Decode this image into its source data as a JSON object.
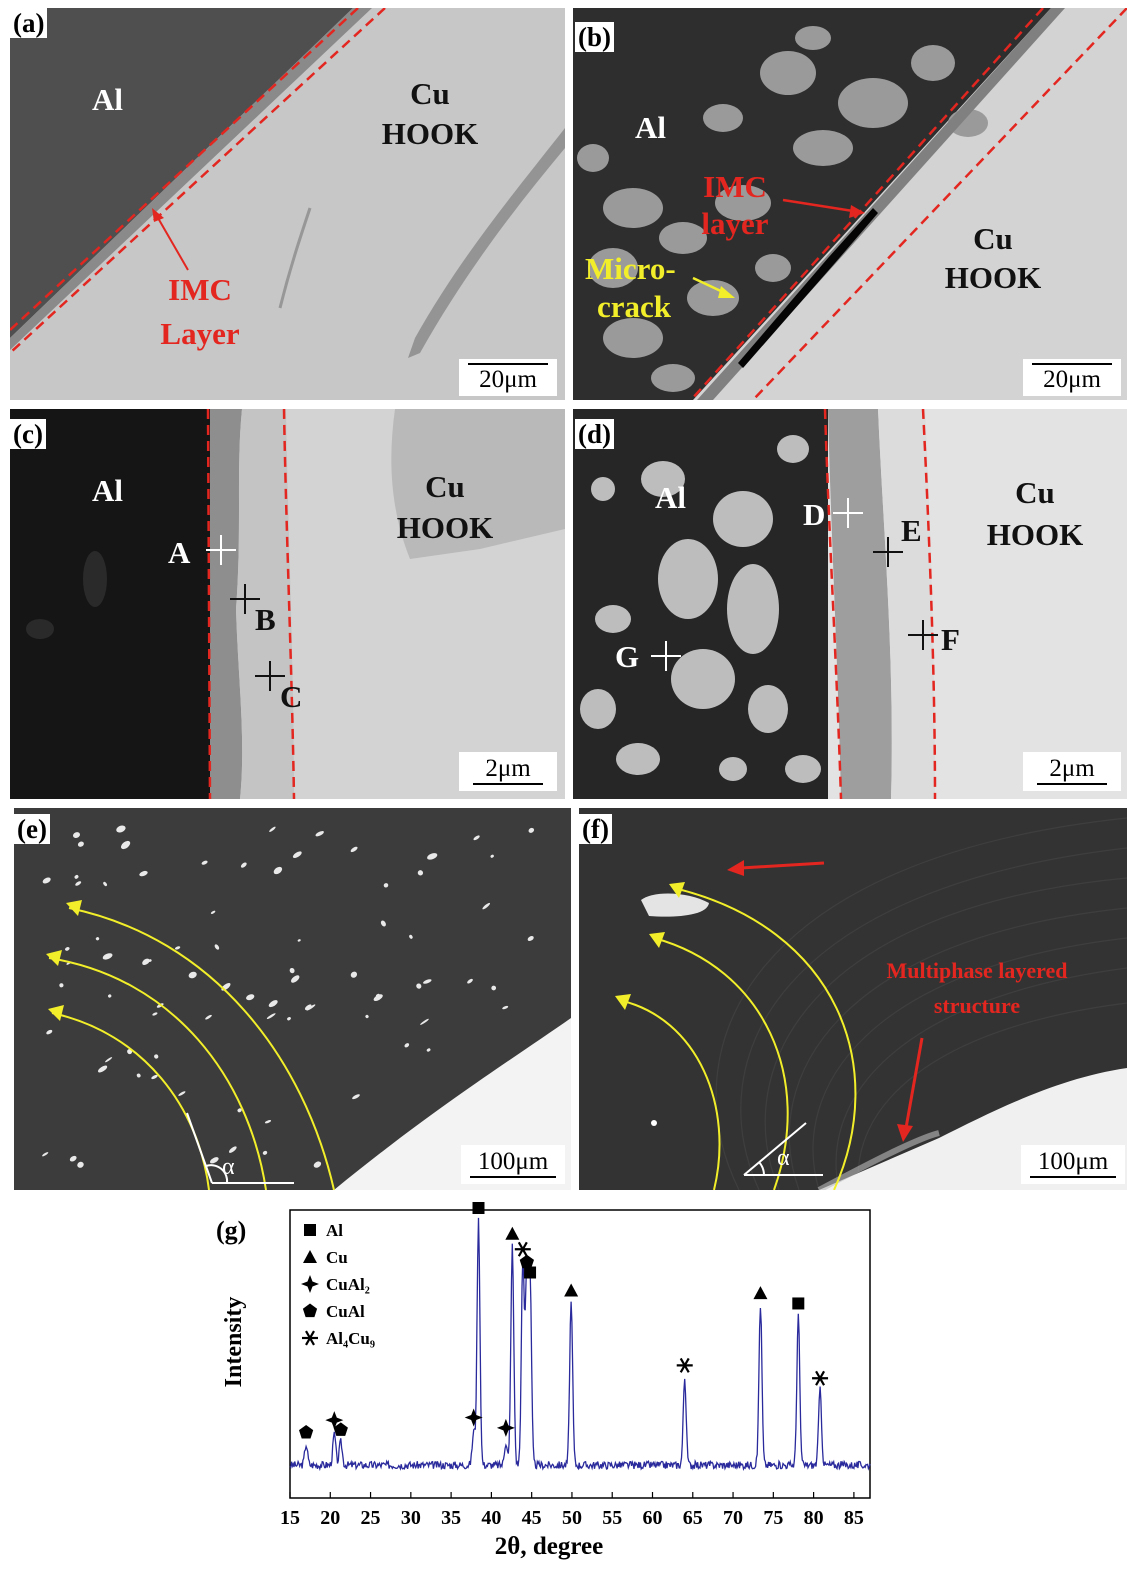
{
  "figure": {
    "panel_a": {
      "label": "(a)",
      "al": "Al",
      "cu": "Cu",
      "hook": "HOOK",
      "imc_1": "IMC",
      "imc_2": "Layer",
      "scale": "20μm"
    },
    "panel_b": {
      "label": "(b)",
      "al": "Al",
      "imc_1": "IMC",
      "imc_2": "layer",
      "micro_1": "Micro-",
      "micro_2": "crack",
      "cu": "Cu",
      "hook": "HOOK",
      "scale": "20μm"
    },
    "panel_c": {
      "label": "(c)",
      "al": "Al",
      "cu": "Cu",
      "hook": "HOOK",
      "point_a": "A",
      "point_b": "B",
      "point_c": "C",
      "scale": "2μm"
    },
    "panel_d": {
      "label": "(d)",
      "al": "Al",
      "cu": "Cu",
      "hook": "HOOK",
      "point_d": "D",
      "point_e": "E",
      "point_f": "F",
      "point_g": "G",
      "scale": "2μm"
    },
    "panel_e": {
      "label": "(e)",
      "alpha": "α",
      "scale": "100μm"
    },
    "panel_f": {
      "label": "(f)",
      "multiphase_1": "Multiphase layered",
      "multiphase_2": "structure",
      "alpha": "α",
      "scale": "100μm"
    },
    "panel_g": {
      "label": "(g)"
    }
  },
  "colors": {
    "imc_line": "#e3261f",
    "flow_line": "#f2ef2a",
    "xrd_line": "#2a2a9c"
  },
  "chart_data": {
    "type": "line",
    "xlabel": "2θ, degree",
    "ylabel": "Intensity",
    "xlim": [
      15,
      87
    ],
    "x_ticks": [
      15,
      20,
      25,
      30,
      35,
      40,
      45,
      50,
      55,
      60,
      65,
      70,
      75,
      80,
      85
    ],
    "y_scale": "arbitrary units",
    "baseline": 5,
    "legend_position": "top-left",
    "legend": [
      {
        "symbol": "square",
        "label": "Al"
      },
      {
        "symbol": "triangle",
        "label": "Cu"
      },
      {
        "symbol": "four-point-star",
        "label": "CuAl₂"
      },
      {
        "symbol": "pentagon",
        "label": "CuAl"
      },
      {
        "symbol": "six-point-star",
        "label": "Al₄Cu₉"
      }
    ],
    "peaks": [
      {
        "x": 17.0,
        "y": 13,
        "phase": "CuAl"
      },
      {
        "x": 20.5,
        "y": 17,
        "phase": "CuAl₂"
      },
      {
        "x": 21.3,
        "y": 14,
        "phase": "CuAl"
      },
      {
        "x": 37.8,
        "y": 18,
        "phase": "CuAl₂"
      },
      {
        "x": 38.4,
        "y": 100,
        "phase": "Al"
      },
      {
        "x": 41.8,
        "y": 14,
        "phase": "CuAl₂"
      },
      {
        "x": 42.6,
        "y": 90,
        "phase": "Cu"
      },
      {
        "x": 43.9,
        "y": 84,
        "phase": "Al₄Cu₉"
      },
      {
        "x": 44.4,
        "y": 79,
        "phase": "CuAl"
      },
      {
        "x": 44.8,
        "y": 75,
        "phase": "Al"
      },
      {
        "x": 49.9,
        "y": 68,
        "phase": "Cu"
      },
      {
        "x": 64.0,
        "y": 39,
        "phase": "Al₄Cu₉"
      },
      {
        "x": 73.4,
        "y": 67,
        "phase": "Cu"
      },
      {
        "x": 78.1,
        "y": 63,
        "phase": "Al"
      },
      {
        "x": 80.8,
        "y": 34,
        "phase": "Al₄Cu₉"
      }
    ]
  }
}
